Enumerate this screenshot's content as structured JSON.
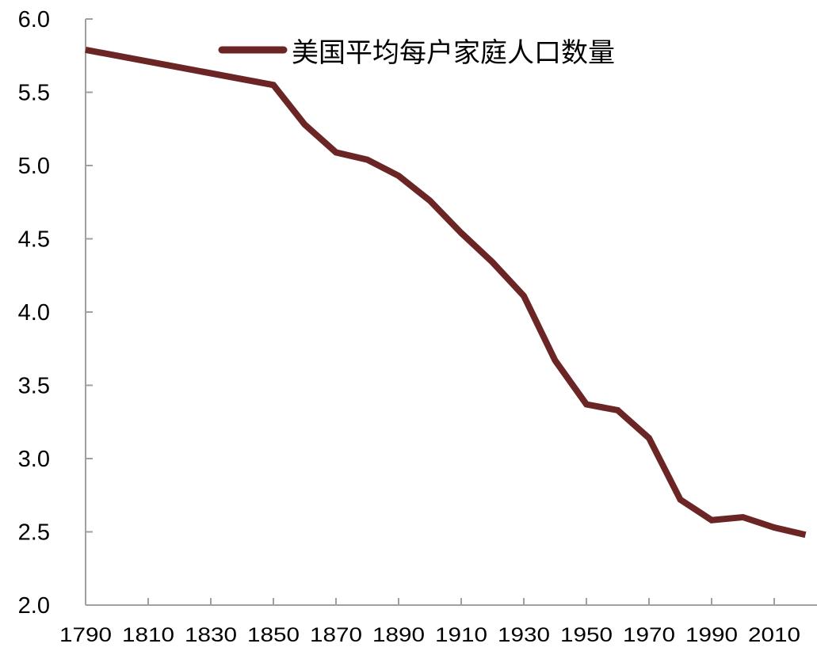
{
  "chart_data": {
    "type": "line",
    "title": "",
    "xlabel": "",
    "ylabel": "",
    "ylim": [
      2.0,
      6.0
    ],
    "xlim": [
      1790,
      2020
    ],
    "grid": false,
    "legend_position": "top-center",
    "yticks": [
      "6.0",
      "5.5",
      "5.0",
      "4.5",
      "4.0",
      "3.5",
      "3.0",
      "2.5",
      "2.0"
    ],
    "ytick_values": [
      6.0,
      5.5,
      5.0,
      4.5,
      4.0,
      3.5,
      3.0,
      2.5,
      2.0
    ],
    "xticks": [
      "1790",
      "1810",
      "1830",
      "1850",
      "1870",
      "1890",
      "1910",
      "1930",
      "1950",
      "1970",
      "1990",
      "2010"
    ],
    "xtick_values": [
      1790,
      1810,
      1830,
      1850,
      1870,
      1890,
      1910,
      1930,
      1950,
      1970,
      1990,
      2010
    ],
    "x": [
      1790,
      1850,
      1860,
      1870,
      1880,
      1890,
      1900,
      1910,
      1920,
      1930,
      1940,
      1950,
      1960,
      1970,
      1980,
      1990,
      2000,
      2010,
      2020
    ],
    "series": [
      {
        "name": "美国平均每户家庭人口数量",
        "color": "#6b2525",
        "values": [
          5.79,
          5.55,
          5.28,
          5.09,
          5.04,
          4.93,
          4.76,
          4.54,
          4.34,
          4.11,
          3.67,
          3.37,
          3.33,
          3.14,
          2.72,
          2.58,
          2.6,
          2.53,
          2.48
        ]
      }
    ]
  },
  "legend": {
    "label": "美国平均每户家庭人口数量"
  },
  "colors": {
    "line": "#6b2525",
    "axis": "#a0a0a0",
    "text": "#000000"
  }
}
